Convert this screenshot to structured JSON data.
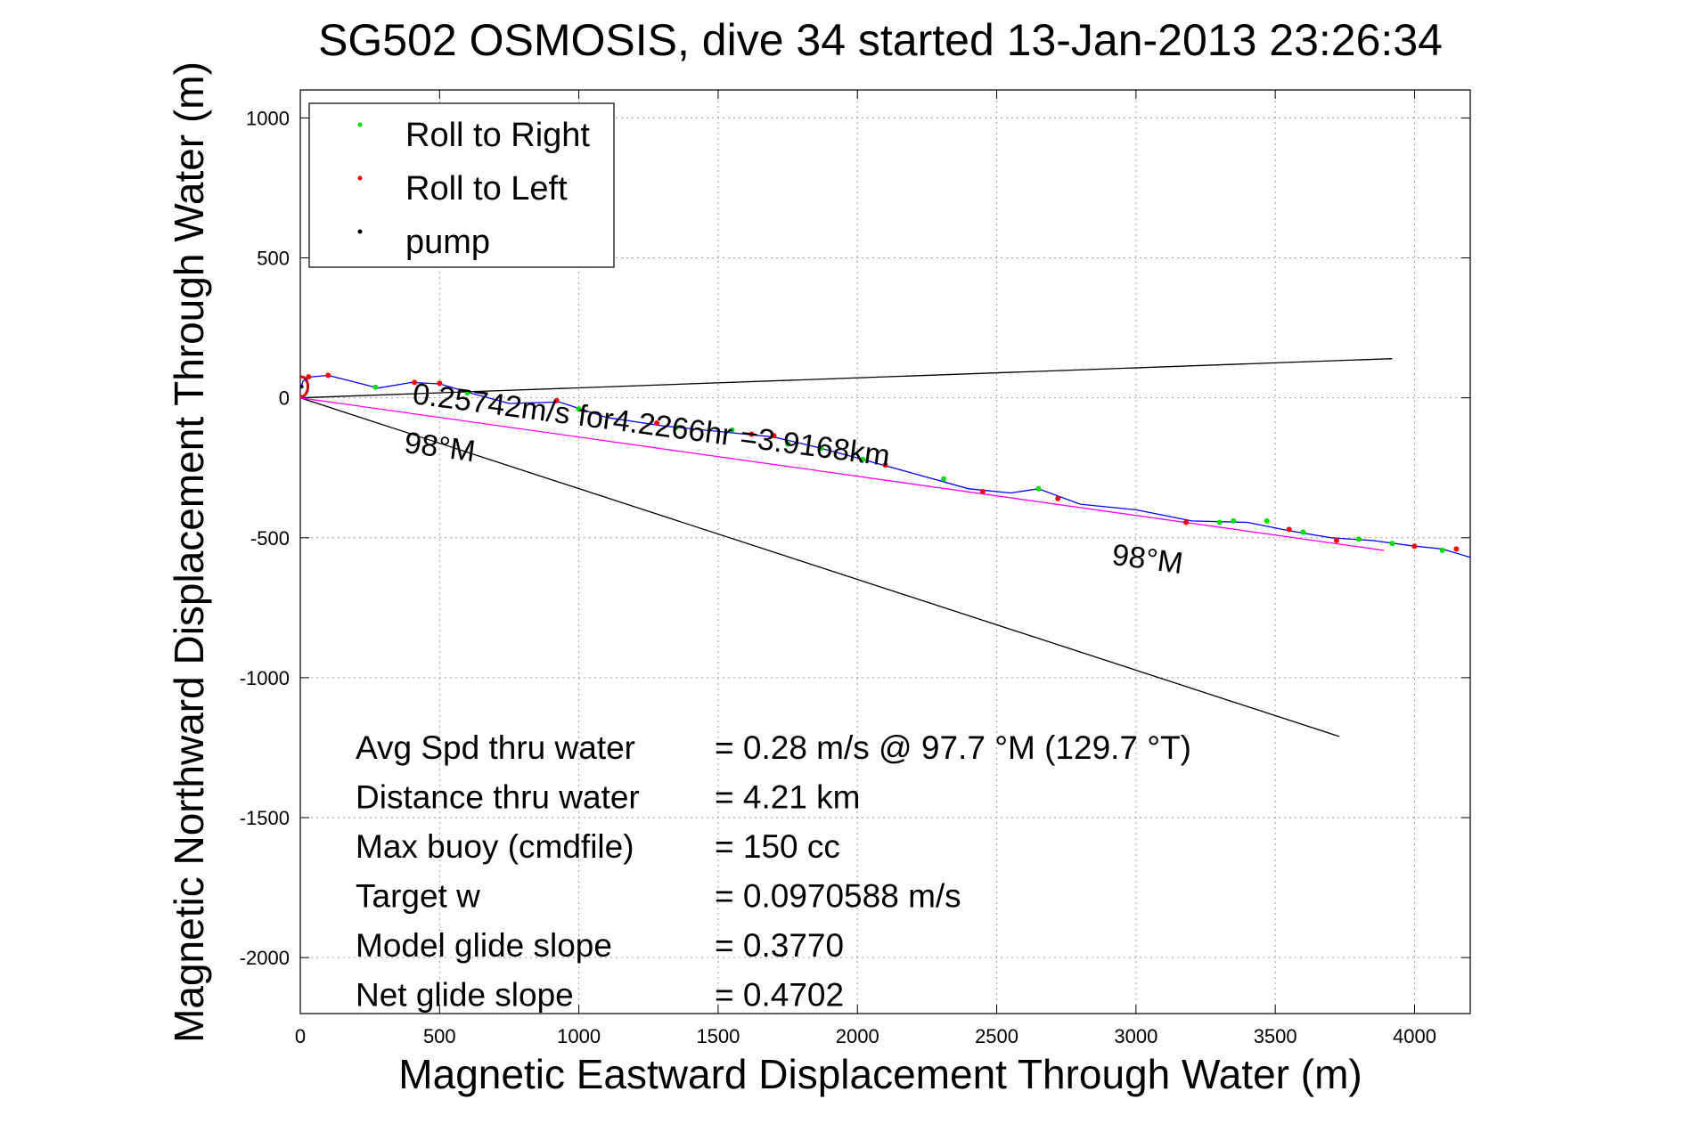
{
  "chart_data": {
    "type": "line",
    "title": "SG502 OSMOSIS, dive 34 started 13-Jan-2013 23:26:34",
    "xlabel": "Magnetic Eastward Displacement Through Water (m)",
    "ylabel": "Magnetic Northward Displacement Through Water (m)",
    "xlim": [
      0,
      4200
    ],
    "ylim": [
      -2200,
      1100
    ],
    "x_ticks": [
      0,
      500,
      1000,
      1500,
      2000,
      2500,
      3000,
      3500,
      4000
    ],
    "y_ticks": [
      1000,
      500,
      0,
      -500,
      -1000,
      -1500,
      -2000
    ],
    "grid": true,
    "legend_position": "top-left",
    "legend": [
      {
        "label": "Roll to Right",
        "color": "#00dd00"
      },
      {
        "label": "Roll to Left",
        "color": "#ff0000"
      },
      {
        "label": "pump",
        "color": "#000000"
      }
    ],
    "track": {
      "color": "#0000ff",
      "x": [
        0,
        10,
        40,
        100,
        180,
        280,
        400,
        500,
        620,
        750,
        930,
        1100,
        1300,
        1500,
        1700,
        1850,
        2000,
        2200,
        2400,
        2550,
        2650,
        2800,
        3000,
        3200,
        3400,
        3550,
        3700,
        3850,
        4000,
        4100,
        4200
      ],
      "y": [
        30,
        60,
        75,
        80,
        60,
        35,
        55,
        50,
        15,
        -20,
        -15,
        -70,
        -100,
        -120,
        -140,
        -175,
        -215,
        -270,
        -325,
        -340,
        -325,
        -380,
        -400,
        -440,
        -445,
        -475,
        -500,
        -510,
        -530,
        -540,
        -570
      ]
    },
    "roll_right_points": {
      "x": [
        270,
        600,
        1000,
        1350,
        1550,
        1750,
        1870,
        2020,
        2310,
        2650,
        3300,
        3350,
        3470,
        3600,
        3800,
        3920,
        4100
      ],
      "y": [
        38,
        18,
        -40,
        -105,
        -115,
        -165,
        -180,
        -220,
        -290,
        -325,
        -445,
        -440,
        -440,
        -480,
        -505,
        -520,
        -545
      ]
    },
    "roll_left_points": {
      "x": [
        30,
        100,
        410,
        500,
        920,
        1280,
        1620,
        1700,
        2100,
        2450,
        2720,
        3180,
        3550,
        3720,
        4000,
        4150
      ],
      "y": [
        75,
        80,
        55,
        52,
        -10,
        -90,
        -130,
        -135,
        -240,
        -335,
        -360,
        -445,
        -470,
        -510,
        -530,
        -540
      ]
    },
    "pump_points": {
      "x": [
        5
      ],
      "y": [
        40
      ]
    },
    "start_loop_color": "#cc0000",
    "lines": [
      {
        "name": "drift",
        "color": "#000000",
        "x": [
          0,
          3920
        ],
        "y": [
          0,
          140
        ]
      },
      {
        "name": "heading",
        "color": "#000000",
        "x": [
          0,
          3730
        ],
        "y": [
          0,
          -1210
        ]
      },
      {
        "name": "average course",
        "color": "#ff00ff",
        "x": [
          0,
          3890
        ],
        "y": [
          0,
          -545
        ]
      }
    ],
    "annotations": [
      {
        "text": "0.25742m/s for4.2266hr =3.9168km",
        "x": 400,
        "y": -20,
        "rotation_deg": 7.5
      },
      {
        "text": "98°M",
        "x": 370,
        "y": -195,
        "rotation_deg": 7.5
      },
      {
        "text": "98°M",
        "x": 2910,
        "y": -595,
        "rotation_deg": 7.5
      }
    ],
    "stats": [
      {
        "label": "Avg Spd thru water",
        "value": "=  0.28 m/s @  97.7 °M (129.7 °T)"
      },
      {
        "label": "Distance thru water",
        "value": "=  4.21 km"
      },
      {
        "label": "Max buoy (cmdfile)",
        "value": "= 150 cc"
      },
      {
        "label": "Target w",
        "value": "= 0.0970588 m/s"
      },
      {
        "label": "Model glide slope",
        "value": "= 0.3770"
      },
      {
        "label": "Net glide slope",
        "value": "= 0.4702"
      }
    ]
  }
}
